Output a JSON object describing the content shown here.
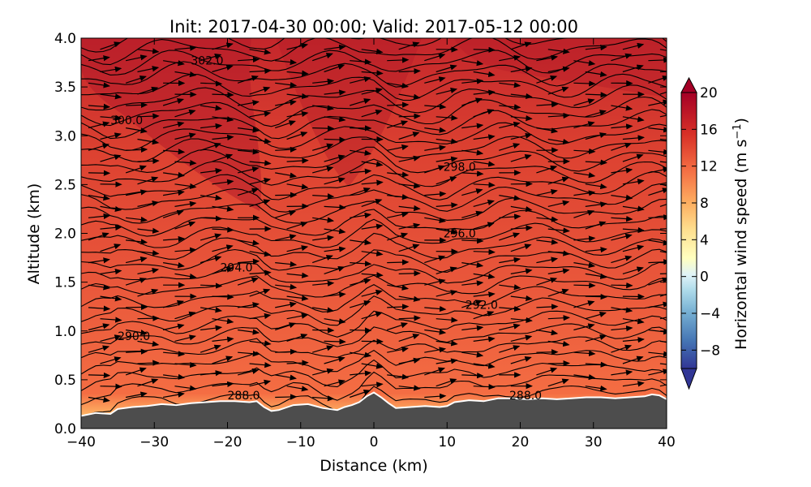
{
  "chart_data": {
    "type": "heatmap",
    "title": "Init: 2017-04-30 00:00; Valid: 2017-05-12 00:00",
    "xlabel": "Distance (km)",
    "ylabel": "Altitude (km)",
    "xlim": [
      -40,
      40
    ],
    "ylim": [
      0,
      4
    ],
    "x_ticks": [
      "−40",
      "−30",
      "−20",
      "−10",
      "0",
      "10",
      "20",
      "30",
      "40"
    ],
    "y_ticks": [
      "0.0",
      "0.5",
      "1.0",
      "1.5",
      "2.0",
      "2.5",
      "3.0",
      "3.5",
      "4.0"
    ],
    "colorbar": {
      "label": "Horizontal wind speed (m s",
      "label_sup": "−1",
      "label_end": ")",
      "range": [
        -10,
        20
      ],
      "ticks": [
        "−8",
        "−4",
        "0",
        "4",
        "8",
        "12",
        "16",
        "20"
      ],
      "colormap": "RdYlBu_r"
    },
    "terrain": {
      "color": "#4d4d4d",
      "x": [
        -40,
        -38,
        -36,
        -35,
        -33,
        -31,
        -29,
        -27,
        -25,
        -23,
        -21,
        -19,
        -17,
        -16,
        -15,
        -14,
        -13,
        -11,
        -9,
        -7,
        -5,
        -4,
        -3,
        -2,
        -1,
        0,
        1,
        2,
        3,
        5,
        7,
        9,
        10,
        11,
        13,
        15,
        17,
        19,
        21,
        23,
        25,
        27,
        29,
        31,
        33,
        35,
        37,
        38,
        39,
        40
      ],
      "y": [
        0.13,
        0.16,
        0.15,
        0.2,
        0.22,
        0.23,
        0.25,
        0.24,
        0.26,
        0.27,
        0.28,
        0.28,
        0.27,
        0.28,
        0.22,
        0.18,
        0.19,
        0.24,
        0.25,
        0.21,
        0.19,
        0.22,
        0.24,
        0.27,
        0.33,
        0.37,
        0.32,
        0.26,
        0.21,
        0.22,
        0.23,
        0.22,
        0.23,
        0.27,
        0.29,
        0.28,
        0.31,
        0.31,
        0.3,
        0.31,
        0.3,
        0.31,
        0.32,
        0.32,
        0.31,
        0.32,
        0.33,
        0.35,
        0.34,
        0.3
      ]
    },
    "contour_labels": [
      {
        "text": "302.0",
        "x": -25,
        "y": 3.77
      },
      {
        "text": "300.0",
        "x": -36,
        "y": 3.16
      },
      {
        "text": "298.0",
        "x": 9.5,
        "y": 2.68
      },
      {
        "text": "296.0",
        "x": 9.5,
        "y": 2.0
      },
      {
        "text": "294.0",
        "x": -21,
        "y": 1.65
      },
      {
        "text": "292.0",
        "x": 12.5,
        "y": 1.27
      },
      {
        "text": "290.0",
        "x": -35,
        "y": 0.95
      },
      {
        "text": "288.0",
        "x": -20,
        "y": 0.34
      },
      {
        "text": "288.0",
        "x": 18.5,
        "y": 0.34
      }
    ]
  }
}
